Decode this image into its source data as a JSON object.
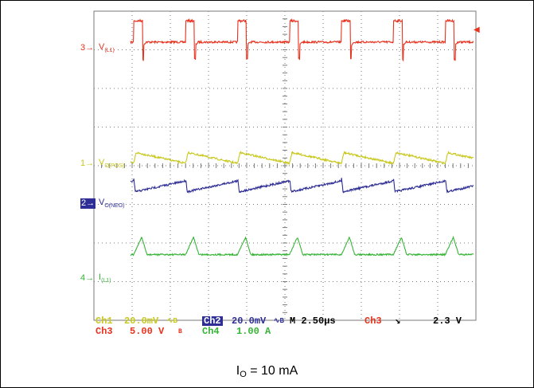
{
  "colors": {
    "ch1": "#c8c81e",
    "ch2": "#2e2e96",
    "ch3": "#e8321e",
    "ch4": "#35b435",
    "grid": "#7a7a7a"
  },
  "chart_data": {
    "type": "line",
    "subtype": "oscilloscope",
    "grid": true,
    "x_divisions": 10,
    "y_divisions": 8,
    "horizontal_scale": "2.50µs",
    "trigger": {
      "source": "Ch3",
      "slope": "falling",
      "level": "2.3 V"
    },
    "pulses_visible": 7,
    "series": [
      {
        "channel": "3",
        "name": "V(L1)",
        "label_main": "V",
        "label_sub": "(L1)",
        "scale": "5.00 V",
        "coupling_glyph": "BW",
        "waveform": "square-pulse",
        "baseline_div": 3.2,
        "pulse_high_div": 0.55,
        "pulse_low_div": -0.45
      },
      {
        "channel": "1",
        "name": "VO(POS)",
        "label_main": "V",
        "label_sub": "O(POS)",
        "scale": "20.0mV",
        "coupling_glyph": "AC BW",
        "waveform": "sawtooth-falling",
        "baseline_div": 0.2,
        "amplitude_div": 0.28
      },
      {
        "channel": "2",
        "name": "VO(NEG)",
        "label_main": "V",
        "label_sub": "O(NEG)",
        "scale": "20.0mV",
        "coupling_glyph": "AC BW",
        "waveform": "sawtooth-rising",
        "baseline_div": -0.45,
        "amplitude_div": 0.28
      },
      {
        "channel": "4",
        "name": "I(L1)",
        "label_main": "I",
        "label_sub": "(L1)",
        "scale": "1.00 A",
        "waveform": "triangle-spike",
        "baseline_div": -2.3,
        "amplitude_div": 0.45
      }
    ]
  },
  "readout": {
    "ch1_name": "Ch1",
    "ch1_scale": "20.0mV",
    "ch1_glyph": "∿B",
    "ch2_name": "Ch2",
    "ch2_scale": "20.0mV",
    "ch2_glyph": "∿B",
    "timebase": "M 2.50µs",
    "trig_source": "Ch3",
    "trig_slope": "↘",
    "trig_level": "2.3 V",
    "ch3_name": "Ch3",
    "ch3_scale": "5.00 V",
    "ch3_glyph": "B",
    "ch4_name": "Ch4",
    "ch4_scale": "1.00 A"
  },
  "caption": {
    "main": "I",
    "sub": "O",
    "rest": " = 10 mA"
  }
}
